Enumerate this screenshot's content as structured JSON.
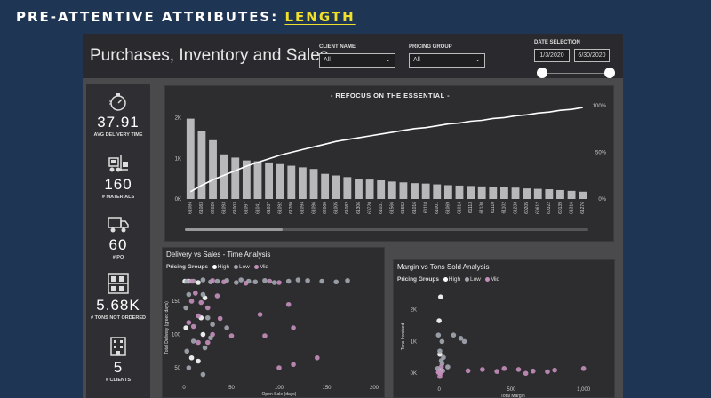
{
  "slide": {
    "title_prefix": "PRE-ATTENTIVE ATTRIBUTES: ",
    "title_highlight": "LENGTH"
  },
  "header": {
    "title": "Purchases, Inventory and Sales",
    "client_filter": {
      "label": "CLIENT NAME",
      "value": "All"
    },
    "pricing_filter": {
      "label": "PRICING GROUP",
      "value": "All"
    },
    "date_selection": {
      "label": "DATE SELECTION",
      "start": "1/3/2020",
      "end": "6/30/2020"
    }
  },
  "kpis": [
    {
      "value": "37.91",
      "caption": "AVG DELIVERY TIME",
      "icon": "stopwatch-icon"
    },
    {
      "value": "160",
      "caption": "# MATERIALS",
      "icon": "forklift-icon"
    },
    {
      "value": "60",
      "caption": "# PO",
      "icon": "truck-icon"
    },
    {
      "value": "5.68K",
      "caption": "# TONS NOT ORDERED",
      "icon": "shelves-icon"
    },
    {
      "value": "5",
      "caption": "# CLIENTS",
      "icon": "building-icon"
    }
  ],
  "colors": {
    "high": "#ffffff",
    "low": "#a3a7b0",
    "mid": "#c58fbd",
    "bar": "#b8b8bb",
    "panel": "#2d2d30"
  },
  "chart_data": [
    {
      "type": "bar",
      "title": "- REFOCUS ON THE ESSENTIAL -",
      "categories": [
        "61084",
        "61083",
        "62020",
        "61093",
        "61003",
        "61097",
        "61041",
        "61037",
        "61092",
        "61280",
        "61094",
        "61096",
        "62060",
        "61005",
        "61082",
        "61306",
        "60720",
        "61031",
        "61566",
        "61552",
        "61016",
        "61118",
        "61001",
        "61069",
        "61014",
        "61113",
        "61130",
        "61110",
        "61102",
        "61233",
        "60205",
        "60612",
        "60322",
        "60139",
        "61316",
        "61276"
      ],
      "y_ticks": [
        "0K",
        "1K",
        "2K"
      ],
      "y2_ticks": [
        "0%",
        "50%",
        "100%"
      ],
      "ylim": [
        0,
        2300
      ],
      "values": [
        1980,
        1680,
        1450,
        1100,
        1020,
        950,
        930,
        900,
        860,
        820,
        780,
        740,
        620,
        580,
        540,
        500,
        480,
        460,
        430,
        410,
        390,
        380,
        360,
        340,
        330,
        320,
        310,
        300,
        290,
        280,
        260,
        250,
        240,
        220,
        200,
        180
      ],
      "cumulative_pct": [
        8,
        15,
        21,
        26,
        31,
        36,
        40,
        44,
        48,
        51,
        54,
        57,
        60,
        63,
        65,
        67,
        69,
        71,
        73,
        75,
        77,
        78,
        80,
        82,
        83,
        85,
        86,
        88,
        89,
        91,
        92,
        94,
        95,
        97,
        98,
        100
      ]
    },
    {
      "type": "scatter",
      "title": "Delivery vs Sales - Time Analysis",
      "legend_title": "Pricing Groups",
      "series_names": [
        "High",
        "Low",
        "Mid"
      ],
      "xlabel": "Open Sale (days)",
      "ylabel": "Total Delivery (greed days)",
      "x_ticks": [
        "0",
        "50",
        "100",
        "150",
        "200"
      ],
      "y_ticks": [
        "50",
        "100",
        "150"
      ],
      "xlim": [
        0,
        200
      ],
      "ylim": [
        30,
        190
      ],
      "series": [
        {
          "name": "High",
          "points": [
            [
              1,
              180
            ],
            [
              5,
              180
            ],
            [
              15,
              178
            ],
            [
              22,
              155
            ],
            [
              18,
              125
            ],
            [
              2,
              110
            ],
            [
              20,
              100
            ],
            [
              8,
              65
            ],
            [
              15,
              60
            ]
          ]
        },
        {
          "name": "Low",
          "points": [
            [
              3,
              180
            ],
            [
              10,
              180
            ],
            [
              20,
              182
            ],
            [
              28,
              179
            ],
            [
              35,
              180
            ],
            [
              45,
              181
            ],
            [
              55,
              178
            ],
            [
              60,
              182
            ],
            [
              68,
              180
            ],
            [
              75,
              179
            ],
            [
              85,
              181
            ],
            [
              95,
              178
            ],
            [
              110,
              180
            ],
            [
              120,
              182
            ],
            [
              130,
              181
            ],
            [
              145,
              180
            ],
            [
              160,
              179
            ],
            [
              172,
              181
            ],
            [
              5,
              160
            ],
            [
              20,
              160
            ],
            [
              25,
              125
            ],
            [
              30,
              115
            ],
            [
              45,
              110
            ],
            [
              2,
              140
            ],
            [
              22,
              80
            ],
            [
              10,
              90
            ],
            [
              28,
              95
            ],
            [
              3,
              75
            ],
            [
              20,
              40
            ],
            [
              5,
              50
            ]
          ]
        },
        {
          "name": "Mid",
          "points": [
            [
              8,
              180
            ],
            [
              30,
              181
            ],
            [
              42,
              179
            ],
            [
              65,
              177
            ],
            [
              90,
              180
            ],
            [
              100,
              178
            ],
            [
              12,
              162
            ],
            [
              8,
              150
            ],
            [
              18,
              148
            ],
            [
              35,
              158
            ],
            [
              25,
              140
            ],
            [
              15,
              128
            ],
            [
              38,
              124
            ],
            [
              5,
              118
            ],
            [
              10,
              112
            ],
            [
              30,
              100
            ],
            [
              50,
              98
            ],
            [
              80,
              130
            ],
            [
              85,
              98
            ],
            [
              110,
              145
            ],
            [
              115,
              110
            ],
            [
              140,
              65
            ],
            [
              115,
              55
            ],
            [
              100,
              50
            ],
            [
              15,
              88
            ],
            [
              25,
              88
            ]
          ]
        }
      ]
    },
    {
      "type": "scatter",
      "title": "Margin vs Tons Sold Analysis",
      "legend_title": "Pricing Groups",
      "series_names": [
        "High",
        "Low",
        "Mid"
      ],
      "xlabel": "Total Margin",
      "ylabel": "Tons Invoiced",
      "x_ticks": [
        "0",
        "500",
        "1,000"
      ],
      "y_ticks": [
        "0K",
        "1K",
        "2K"
      ],
      "xlim": [
        -130,
        1150
      ],
      "ylim": [
        -300,
        2600
      ],
      "series": [
        {
          "name": "High",
          "points": [
            [
              10,
              2400
            ],
            [
              0,
              1650
            ],
            [
              5,
              600
            ],
            [
              8,
              100
            ]
          ]
        },
        {
          "name": "Low",
          "points": [
            [
              -5,
              1200
            ],
            [
              5,
              700
            ],
            [
              15,
              400
            ],
            [
              -10,
              150
            ],
            [
              20,
              1000
            ],
            [
              25,
              80
            ],
            [
              30,
              500
            ],
            [
              100,
              1200
            ],
            [
              150,
              1100
            ],
            [
              175,
              1000
            ],
            [
              20,
              300
            ],
            [
              60,
              200
            ]
          ]
        },
        {
          "name": "Mid",
          "points": [
            [
              0,
              50
            ],
            [
              5,
              -100
            ],
            [
              10,
              0
            ],
            [
              -5,
              30
            ],
            [
              15,
              200
            ],
            [
              200,
              80
            ],
            [
              300,
              120
            ],
            [
              400,
              60
            ],
            [
              450,
              150
            ],
            [
              550,
              120
            ],
            [
              650,
              70
            ],
            [
              750,
              50
            ],
            [
              800,
              100
            ],
            [
              1000,
              150
            ],
            [
              600,
              0
            ]
          ]
        }
      ]
    }
  ]
}
